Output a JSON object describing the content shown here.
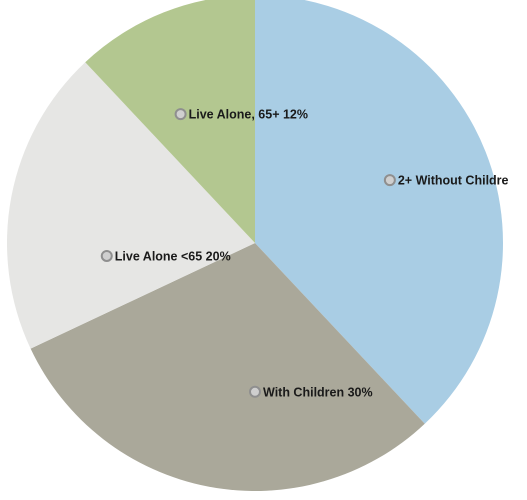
{
  "chart_data": {
    "type": "pie",
    "title": "",
    "slices": [
      {
        "label": "2+ Without Childre",
        "value": 38,
        "display": "2+ Without Childre",
        "color": "#a9cde4"
      },
      {
        "label": "With Children",
        "value": 30,
        "display": "With Children 30%",
        "color": "#aaa89a"
      },
      {
        "label": "Live Alone <65",
        "value": 20,
        "display": "Live Alone <65 20%",
        "color": "#e6e6e4"
      },
      {
        "label": "Live Alone, 65+",
        "value": 12,
        "display": "Live Alone, 65+ 12%",
        "color": "#b3c790"
      }
    ],
    "start_angle": "top",
    "direction": "clockwise",
    "legend": "none"
  }
}
